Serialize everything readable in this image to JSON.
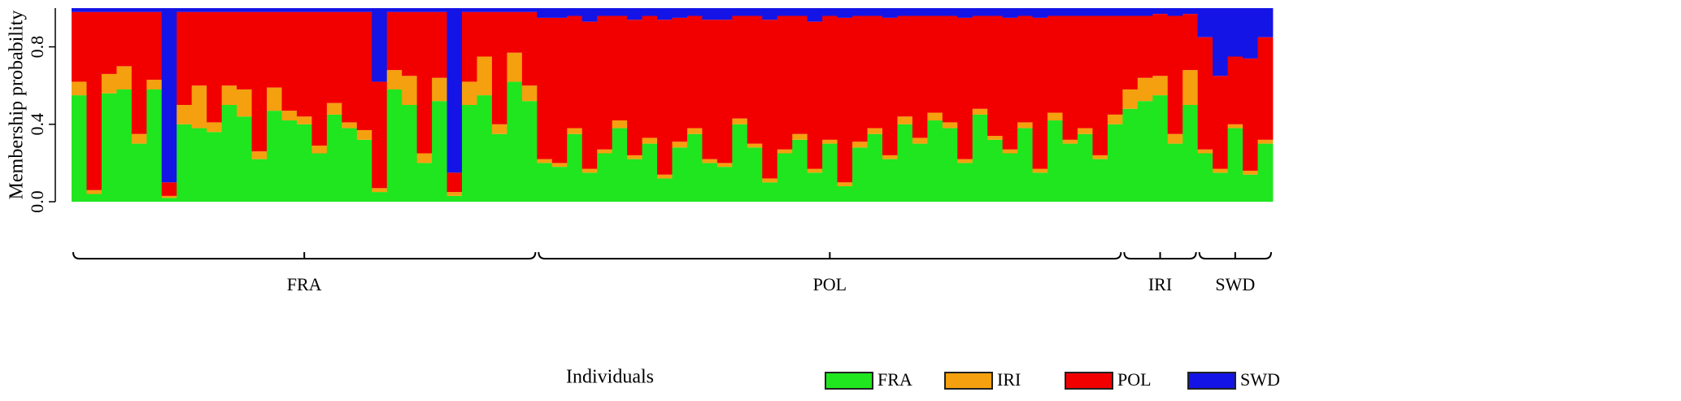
{
  "chart_data": {
    "type": "stacked_bar",
    "ylabel": "Membership probability",
    "xlabel": "Individuals",
    "ylim": [
      0,
      1
    ],
    "yticks": [
      {
        "value": 0,
        "label": "0.0"
      },
      {
        "value": 0.4,
        "label": "0.4"
      },
      {
        "value": 0.8,
        "label": "0.8"
      }
    ],
    "groups": [
      {
        "label": "FRA",
        "size": 31
      },
      {
        "label": "POL",
        "size": 39
      },
      {
        "label": "IRI",
        "size": 5
      },
      {
        "label": "SWD",
        "size": 5
      }
    ],
    "legend": "bottom-right",
    "series": [
      {
        "name": "FRA",
        "color": "#1fe61f",
        "values": [
          0.55,
          0.04,
          0.56,
          0.58,
          0.3,
          0.58,
          0.02,
          0.4,
          0.38,
          0.36,
          0.5,
          0.44,
          0.22,
          0.47,
          0.42,
          0.4,
          0.25,
          0.45,
          0.38,
          0.32,
          0.05,
          0.58,
          0.5,
          0.2,
          0.52,
          0.03,
          0.5,
          0.55,
          0.35,
          0.62,
          0.52,
          0.2,
          0.18,
          0.35,
          0.15,
          0.25,
          0.38,
          0.22,
          0.3,
          0.12,
          0.28,
          0.35,
          0.2,
          0.18,
          0.4,
          0.28,
          0.1,
          0.25,
          0.32,
          0.15,
          0.3,
          0.08,
          0.28,
          0.35,
          0.22,
          0.4,
          0.3,
          0.42,
          0.38,
          0.2,
          0.45,
          0.32,
          0.25,
          0.38,
          0.15,
          0.42,
          0.3,
          0.35,
          0.22,
          0.4,
          0.48,
          0.52,
          0.55,
          0.3,
          0.5,
          0.25,
          0.15,
          0.38,
          0.14,
          0.3
        ]
      },
      {
        "name": "IRI",
        "color": "#f5a00f",
        "values": [
          0.07,
          0.02,
          0.1,
          0.12,
          0.05,
          0.05,
          0.01,
          0.1,
          0.22,
          0.05,
          0.1,
          0.14,
          0.04,
          0.12,
          0.05,
          0.04,
          0.04,
          0.06,
          0.03,
          0.05,
          0.02,
          0.1,
          0.15,
          0.05,
          0.12,
          0.02,
          0.12,
          0.2,
          0.05,
          0.15,
          0.08,
          0.02,
          0.02,
          0.03,
          0.02,
          0.02,
          0.04,
          0.02,
          0.03,
          0.02,
          0.03,
          0.03,
          0.02,
          0.02,
          0.03,
          0.02,
          0.02,
          0.02,
          0.03,
          0.02,
          0.02,
          0.02,
          0.03,
          0.03,
          0.02,
          0.04,
          0.03,
          0.04,
          0.03,
          0.02,
          0.03,
          0.02,
          0.02,
          0.03,
          0.02,
          0.04,
          0.02,
          0.03,
          0.02,
          0.05,
          0.1,
          0.12,
          0.1,
          0.05,
          0.18,
          0.02,
          0.02,
          0.02,
          0.02,
          0.02
        ]
      },
      {
        "name": "POL",
        "color": "#f20000",
        "values": [
          0.36,
          0.92,
          0.32,
          0.28,
          0.63,
          0.35,
          0.07,
          0.48,
          0.38,
          0.57,
          0.38,
          0.4,
          0.72,
          0.39,
          0.51,
          0.54,
          0.69,
          0.47,
          0.57,
          0.61,
          0.55,
          0.3,
          0.33,
          0.73,
          0.34,
          0.1,
          0.36,
          0.23,
          0.58,
          0.21,
          0.38,
          0.73,
          0.75,
          0.58,
          0.76,
          0.69,
          0.54,
          0.7,
          0.63,
          0.8,
          0.64,
          0.58,
          0.72,
          0.74,
          0.53,
          0.66,
          0.82,
          0.69,
          0.61,
          0.76,
          0.64,
          0.85,
          0.65,
          0.58,
          0.71,
          0.52,
          0.63,
          0.5,
          0.55,
          0.73,
          0.48,
          0.62,
          0.68,
          0.55,
          0.78,
          0.5,
          0.64,
          0.58,
          0.72,
          0.51,
          0.38,
          0.32,
          0.32,
          0.61,
          0.29,
          0.58,
          0.48,
          0.35,
          0.58,
          0.53
        ]
      },
      {
        "name": "SWD",
        "color": "#1414e6",
        "values": [
          0.02,
          0.02,
          0.02,
          0.02,
          0.02,
          0.02,
          0.9,
          0.02,
          0.02,
          0.02,
          0.02,
          0.02,
          0.02,
          0.02,
          0.02,
          0.02,
          0.02,
          0.02,
          0.02,
          0.02,
          0.38,
          0.02,
          0.02,
          0.02,
          0.02,
          0.85,
          0.02,
          0.02,
          0.02,
          0.02,
          0.02,
          0.05,
          0.05,
          0.04,
          0.07,
          0.04,
          0.04,
          0.06,
          0.04,
          0.06,
          0.05,
          0.04,
          0.06,
          0.06,
          0.04,
          0.04,
          0.06,
          0.04,
          0.04,
          0.07,
          0.04,
          0.05,
          0.04,
          0.04,
          0.05,
          0.04,
          0.04,
          0.04,
          0.04,
          0.05,
          0.04,
          0.04,
          0.05,
          0.04,
          0.05,
          0.04,
          0.04,
          0.04,
          0.04,
          0.04,
          0.04,
          0.04,
          0.03,
          0.04,
          0.03,
          0.15,
          0.35,
          0.25,
          0.26,
          0.15
        ]
      }
    ]
  }
}
